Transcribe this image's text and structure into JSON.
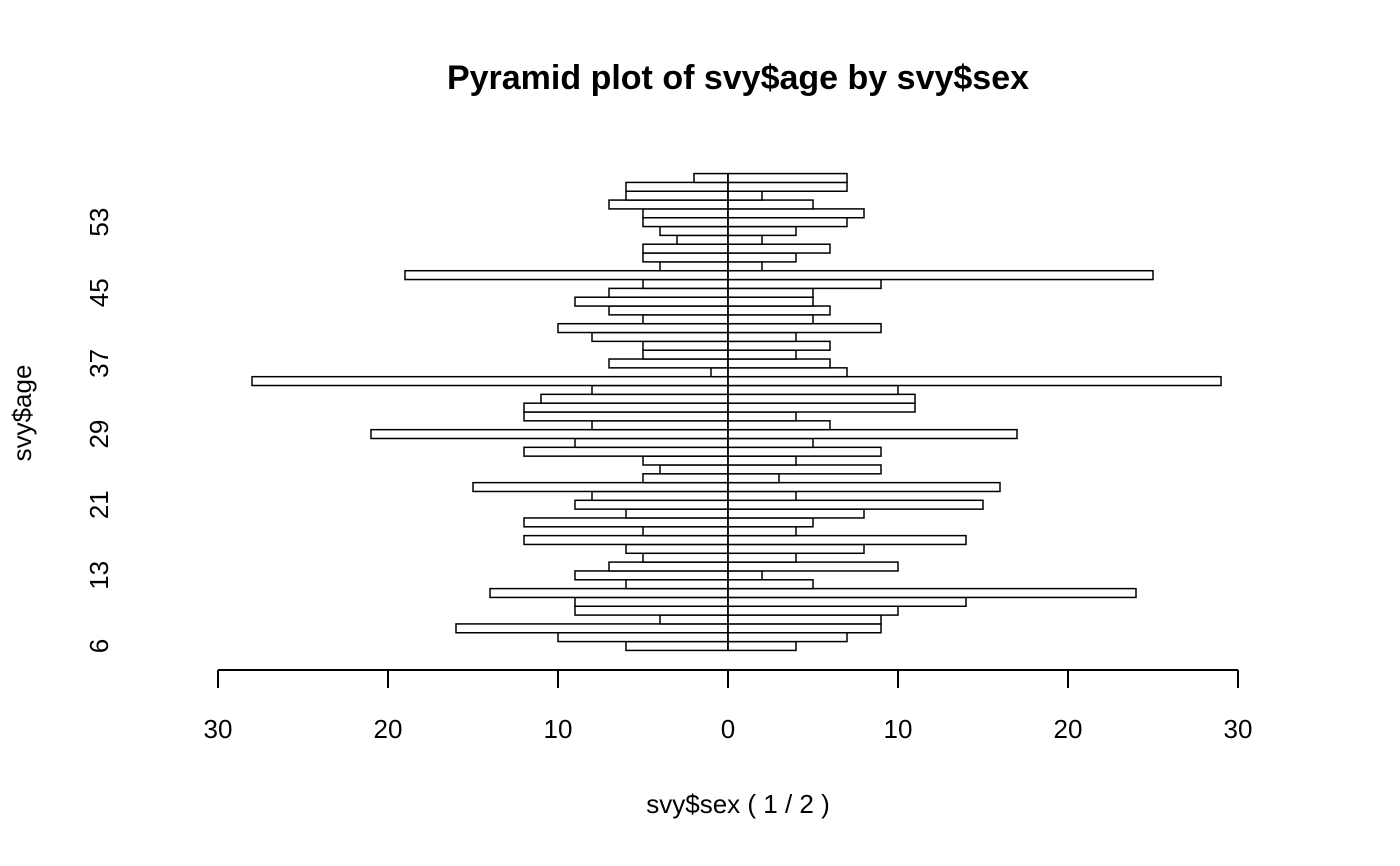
{
  "chart_data": {
    "type": "pyramid",
    "title": "Pyramid plot of svy$age by svy$sex",
    "x_label": "svy$sex ( 1 / 2 )",
    "y_label": "svy$age",
    "categories": [
      "6",
      null,
      null,
      null,
      null,
      null,
      null,
      null,
      "13",
      null,
      null,
      null,
      null,
      null,
      null,
      null,
      "21",
      null,
      null,
      null,
      null,
      null,
      null,
      null,
      "29",
      null,
      null,
      null,
      null,
      null,
      null,
      null,
      "37",
      null,
      null,
      null,
      null,
      null,
      null,
      null,
      "45",
      null,
      null,
      null,
      null,
      null,
      null,
      null,
      "53",
      null,
      null,
      null,
      null,
      null
    ],
    "series": [
      {
        "side": "left",
        "color": "#ffffff",
        "values": [
          6,
          10,
          16,
          4,
          9,
          9,
          14,
          6,
          9,
          7,
          5,
          6,
          12,
          5,
          12,
          6,
          9,
          8,
          15,
          5,
          4,
          5,
          12,
          9,
          21,
          8,
          12,
          12,
          11,
          8,
          28,
          1,
          7,
          5,
          5,
          8,
          10,
          5,
          7,
          9,
          7,
          5,
          19,
          4,
          5,
          5,
          3,
          4,
          5,
          5,
          7,
          6,
          6,
          2
        ]
      },
      {
        "side": "right",
        "color": "#ffffff",
        "values": [
          4,
          7,
          9,
          9,
          10,
          14,
          24,
          5,
          2,
          10,
          4,
          8,
          14,
          4,
          5,
          8,
          15,
          4,
          16,
          3,
          9,
          4,
          9,
          5,
          17,
          6,
          4,
          11,
          11,
          10,
          29,
          7,
          6,
          4,
          6,
          4,
          9,
          5,
          6,
          5,
          5,
          9,
          25,
          2,
          4,
          6,
          2,
          4,
          7,
          8,
          5,
          2,
          7,
          7
        ]
      }
    ],
    "xlim": [
      -30,
      30
    ],
    "xticks": [
      {
        "value": -30,
        "label": "30"
      },
      {
        "value": -20,
        "label": "20"
      },
      {
        "value": -10,
        "label": "10"
      },
      0,
      10,
      20,
      30
    ]
  }
}
